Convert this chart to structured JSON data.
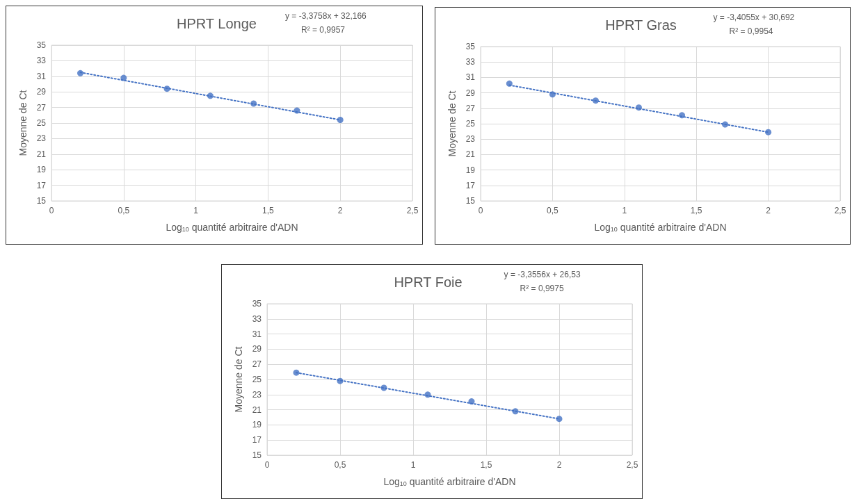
{
  "chart_data": [
    {
      "type": "scatter",
      "title": "HPRT Longe",
      "xlabel": "Log$_{10}$ quantité arbitraire d'ADN",
      "ylabel": "Moyenne de Ct",
      "annotations": [
        "y = -3,3758x + 32,166",
        "R² = 0,9957"
      ],
      "xlim": [
        0,
        2.5
      ],
      "xticks": [
        0,
        {
          "value": 0.5,
          "label": "0,5"
        },
        1,
        {
          "value": 1.5,
          "label": "1,5"
        },
        2,
        {
          "value": 2.5,
          "label": "2,5"
        }
      ],
      "ylim": [
        15,
        35
      ],
      "yticks": [
        15,
        17,
        19,
        21,
        23,
        25,
        27,
        29,
        31,
        33,
        35
      ],
      "grid": true,
      "marker": "circle",
      "series": [
        {
          "color": "#4472c4",
          "x": [
            0.2,
            0.5,
            0.8,
            1.1,
            1.4,
            1.7,
            2.0
          ],
          "values": [
            31.4,
            30.8,
            29.4,
            28.5,
            27.5,
            26.6,
            25.4
          ]
        },
        {
          "type": "line",
          "color": "#4472c4",
          "line_style": "dotted",
          "marker": "none",
          "x": [
            0.2,
            2.0
          ],
          "values": [
            31.5,
            25.4
          ]
        }
      ]
    },
    {
      "type": "scatter",
      "title": "HPRT Gras",
      "xlabel": "Log$_{10}$ quantité arbitraire d'ADN",
      "ylabel": "Moyenne de Ct",
      "annotations": [
        "y = -3,4055x + 30,692",
        "R² = 0,9954"
      ],
      "xlim": [
        0,
        2.5
      ],
      "xticks": [
        0,
        {
          "value": 0.5,
          "label": "0,5"
        },
        1,
        {
          "value": 1.5,
          "label": "1,5"
        },
        2,
        {
          "value": 2.5,
          "label": "2,5"
        }
      ],
      "ylim": [
        15,
        35
      ],
      "yticks": [
        15,
        17,
        19,
        21,
        23,
        25,
        27,
        29,
        31,
        33,
        35
      ],
      "grid": true,
      "marker": "circle",
      "series": [
        {
          "color": "#4472c4",
          "x": [
            0.2,
            0.5,
            0.8,
            1.1,
            1.4,
            1.7,
            2.0
          ],
          "values": [
            30.2,
            28.8,
            28.0,
            27.1,
            26.1,
            24.9,
            23.9
          ]
        },
        {
          "type": "line",
          "color": "#4472c4",
          "line_style": "dotted",
          "marker": "none",
          "x": [
            0.2,
            2.0
          ],
          "values": [
            30.0,
            23.9
          ]
        }
      ]
    },
    {
      "type": "scatter",
      "title": "HPRT Foie",
      "xlabel": "Log$_{10}$ quantité arbitraire d'ADN",
      "ylabel": "Moyenne de Ct",
      "annotations": [
        "y = -3,3556x + 26,53",
        "R² = 0,9975"
      ],
      "xlim": [
        0,
        2.5
      ],
      "xticks": [
        0,
        {
          "value": 0.5,
          "label": "0,5"
        },
        1,
        {
          "value": 1.5,
          "label": "1,5"
        },
        2,
        {
          "value": 2.5,
          "label": "2,5"
        }
      ],
      "ylim": [
        15,
        35
      ],
      "yticks": [
        15,
        17,
        19,
        21,
        23,
        25,
        27,
        29,
        31,
        33,
        35
      ],
      "grid": true,
      "marker": "circle",
      "series": [
        {
          "color": "#4472c4",
          "x": [
            0.2,
            0.5,
            0.8,
            1.1,
            1.4,
            1.7,
            2.0
          ],
          "values": [
            25.9,
            24.8,
            23.9,
            23.0,
            22.1,
            20.8,
            19.8
          ]
        },
        {
          "type": "line",
          "color": "#4472c4",
          "line_style": "dotted",
          "marker": "none",
          "x": [
            0.2,
            2.0
          ],
          "values": [
            25.9,
            19.8
          ]
        }
      ]
    }
  ]
}
